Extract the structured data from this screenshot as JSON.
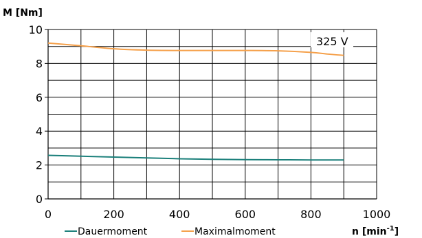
{
  "chart_data": {
    "type": "line",
    "ylabel": "M [Nm]",
    "xlabel_base": "n [min",
    "xlabel_sup": "-1",
    "xlabel_end": "]",
    "annotation": "325 V",
    "xlim": [
      0,
      1000
    ],
    "ylim": [
      0,
      10
    ],
    "x_ticks": [
      "0",
      "200",
      "400",
      "600",
      "800",
      "1000"
    ],
    "y_ticks": [
      "0",
      "2",
      "4",
      "6",
      "8",
      "10"
    ],
    "grid": true,
    "legend_position": "bottom",
    "series": [
      {
        "name": "Dauermoment",
        "color": "#1a7f7a",
        "x": [
          0,
          100,
          200,
          300,
          400,
          500,
          600,
          700,
          800,
          900
        ],
        "y": [
          2.57,
          2.52,
          2.47,
          2.42,
          2.37,
          2.34,
          2.32,
          2.31,
          2.3,
          2.3
        ]
      },
      {
        "name": "Maximalmoment",
        "color": "#f5a04a",
        "x": [
          0,
          100,
          200,
          300,
          400,
          500,
          600,
          700,
          800,
          850,
          900
        ],
        "y": [
          9.2,
          9.04,
          8.86,
          8.78,
          8.76,
          8.76,
          8.76,
          8.74,
          8.65,
          8.55,
          8.47
        ]
      }
    ]
  }
}
